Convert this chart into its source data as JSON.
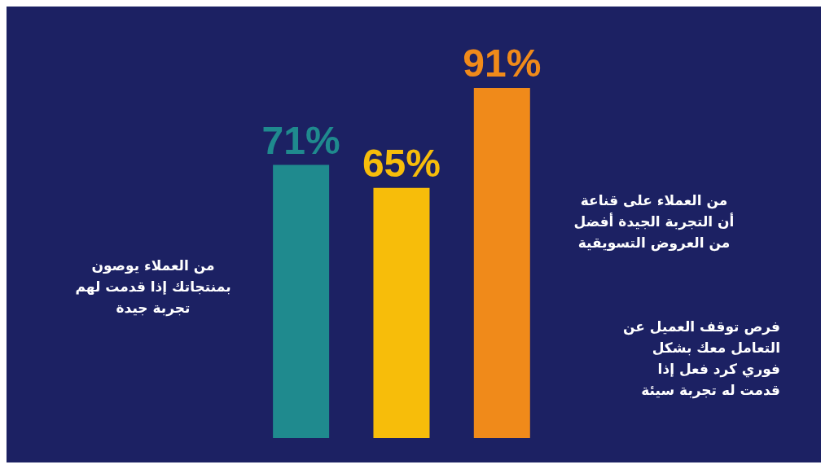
{
  "chart_data": {
    "type": "bar",
    "categories": [
      null,
      null,
      null
    ],
    "values": [
      71,
      65,
      91
    ],
    "colors": [
      "#1f8a8e",
      "#f7bd0a",
      "#f08a1a"
    ],
    "value_labels": [
      "71%",
      "65%",
      "91%"
    ],
    "annotations": [
      "من العملاء يوصون\nبمنتجاتك إذا قدمت لهم\nتجربة جيدة",
      "من العملاء على قناعة\nأن التجربة الجيدة أفضل\nمن العروض التسويقية",
      "فرص توقف العميل عن\nالتعامل معك بشكل\nفوري كرد فعل إذا\nقدمت له تجربة سيئة"
    ]
  }
}
